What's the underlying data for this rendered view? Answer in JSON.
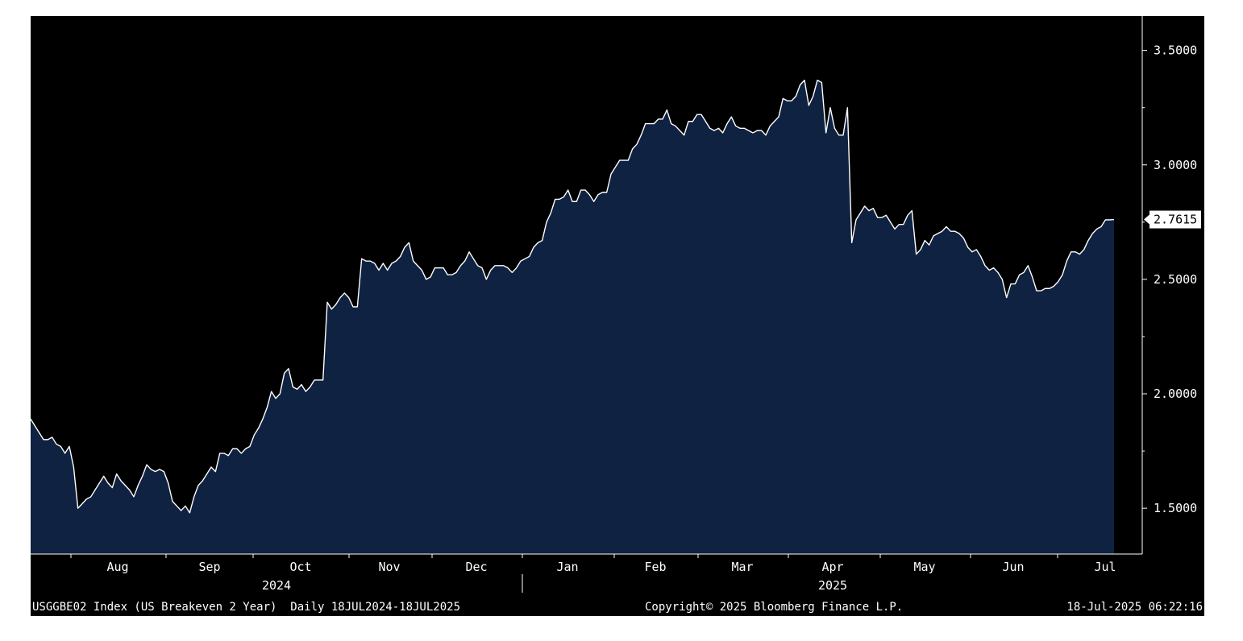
{
  "chart_data": {
    "type": "area",
    "ylim": [
      1.3,
      3.65
    ],
    "y_ticks": [
      1.5,
      2.0,
      2.5,
      3.0,
      3.5
    ],
    "y_tick_labels": [
      "1.5000",
      "2.0000",
      "2.5000",
      "3.0000",
      "3.5000"
    ],
    "last_value": 2.7615,
    "last_value_label": "2.7615",
    "months": [
      "Aug",
      "Sep",
      "Oct",
      "Nov",
      "Dec",
      "Jan",
      "Feb",
      "Mar",
      "Apr",
      "May",
      "Jun",
      "Jul"
    ],
    "years": [
      "2024",
      "2025"
    ],
    "grid": false,
    "colors": {
      "fill": "#0f2242",
      "line": "#ffffff",
      "background": "#000000"
    },
    "series": [
      {
        "values": [
          1.89,
          1.86,
          1.83,
          1.8,
          1.8,
          1.81,
          1.78,
          1.77,
          1.74,
          1.77,
          1.68,
          1.5,
          1.52,
          1.54,
          1.55,
          1.58,
          1.61,
          1.64,
          1.61,
          1.59,
          1.65,
          1.62,
          1.6,
          1.58,
          1.55,
          1.6,
          1.64,
          1.69,
          1.67,
          1.66,
          1.67,
          1.66,
          1.61,
          1.53,
          1.51,
          1.49,
          1.51,
          1.48,
          1.55,
          1.6,
          1.62,
          1.65,
          1.68,
          1.66,
          1.74,
          1.74,
          1.73,
          1.76,
          1.76,
          1.74,
          1.76,
          1.77,
          1.82,
          1.85,
          1.89,
          1.94,
          2.01,
          1.98,
          2.0,
          2.09,
          2.11,
          2.03,
          2.02,
          2.04,
          2.01,
          2.03,
          2.06,
          2.06,
          2.06,
          2.4,
          2.37,
          2.39,
          2.42,
          2.44,
          2.42,
          2.38,
          2.38,
          2.59,
          2.58,
          2.58,
          2.57,
          2.54,
          2.57,
          2.54,
          2.57,
          2.58,
          2.6,
          2.64,
          2.66,
          2.58,
          2.56,
          2.54,
          2.5,
          2.51,
          2.55,
          2.55,
          2.55,
          2.52,
          2.52,
          2.53,
          2.56,
          2.58,
          2.62,
          2.59,
          2.56,
          2.55,
          2.5,
          2.54,
          2.56,
          2.56,
          2.56,
          2.55,
          2.53,
          2.55,
          2.58,
          2.59,
          2.6,
          2.64,
          2.66,
          2.67,
          2.75,
          2.79,
          2.85,
          2.85,
          2.86,
          2.89,
          2.84,
          2.84,
          2.89,
          2.89,
          2.87,
          2.84,
          2.87,
          2.88,
          2.88,
          2.96,
          2.99,
          3.02,
          3.02,
          3.02,
          3.07,
          3.09,
          3.13,
          3.18,
          3.18,
          3.18,
          3.2,
          3.2,
          3.24,
          3.18,
          3.17,
          3.15,
          3.13,
          3.19,
          3.19,
          3.22,
          3.22,
          3.19,
          3.16,
          3.15,
          3.16,
          3.14,
          3.18,
          3.21,
          3.17,
          3.16,
          3.16,
          3.15,
          3.14,
          3.15,
          3.15,
          3.13,
          3.17,
          3.19,
          3.21,
          3.29,
          3.28,
          3.28,
          3.3,
          3.35,
          3.37,
          3.26,
          3.3,
          3.37,
          3.36,
          3.14,
          3.25,
          3.16,
          3.13,
          3.13,
          3.25,
          2.66,
          2.76,
          2.79,
          2.82,
          2.8,
          2.81,
          2.77,
          2.77,
          2.78,
          2.75,
          2.72,
          2.74,
          2.74,
          2.78,
          2.8,
          2.61,
          2.63,
          2.67,
          2.65,
          2.69,
          2.7,
          2.71,
          2.73,
          2.71,
          2.71,
          2.7,
          2.68,
          2.64,
          2.62,
          2.63,
          2.6,
          2.56,
          2.54,
          2.55,
          2.53,
          2.5,
          2.42,
          2.48,
          2.48,
          2.52,
          2.53,
          2.56,
          2.51,
          2.45,
          2.45,
          2.46,
          2.46,
          2.47,
          2.49,
          2.52,
          2.58,
          2.62,
          2.62,
          2.61,
          2.63,
          2.67,
          2.7,
          2.72,
          2.73,
          2.76,
          2.76,
          2.7615
        ]
      }
    ]
  },
  "footer": {
    "ticker": "USGGBE02 Index (US Breakeven 2 Year)  Daily 18JUL2024-18JUL2025",
    "copyright": "Copyright© 2025 Bloomberg Finance L.P.",
    "timestamp": "18-Jul-2025 06:22:16"
  }
}
